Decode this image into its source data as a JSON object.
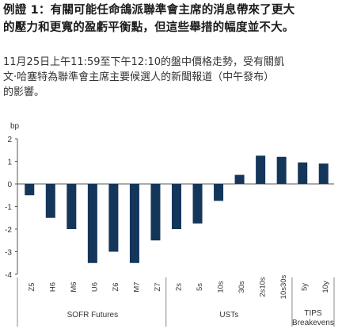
{
  "figure": {
    "heading_line1": "例證 1：有關可能任命鴿派聯準會主席的消息帶來了更大",
    "heading_line2": "的壓力和更寬的盈虧平衡點，但這些舉措的幅度並不大。",
    "subtitle_line1": "11月25日上午11:59至下午12:10的盤中價格走勢，受有關凱",
    "subtitle_line2": "文·哈塞特為聯準會主席主要候選人的新聞報道（中午發布）",
    "subtitle_line3": "的影響。"
  },
  "chart_data": {
    "type": "bar",
    "title": "",
    "xlabel": "",
    "ylabel": "bp",
    "ylim": [
      -4,
      2
    ],
    "yticks": [
      2,
      1,
      0,
      -1,
      -2,
      -3,
      -4
    ],
    "grid": false,
    "bar_color": "#14365a",
    "categories": [
      "Z5",
      "H6",
      "M6",
      "U6",
      "Z6",
      "M7",
      "Z7",
      "2s",
      "5s",
      "10s",
      "30s",
      "2s10s",
      "10s30s",
      "5y",
      "10y"
    ],
    "values": [
      -0.5,
      -1.5,
      -2.0,
      -3.5,
      -3.0,
      -3.5,
      -2.5,
      -2.0,
      -1.75,
      -0.75,
      0.4,
      1.25,
      1.2,
      0.95,
      0.9
    ],
    "groups": [
      {
        "name": "SOFR Futures",
        "start": 0,
        "end": 6
      },
      {
        "name": "USTs",
        "start": 7,
        "end": 12
      },
      {
        "name": "TIPS Breakevens",
        "start": 13,
        "end": 14
      }
    ]
  }
}
